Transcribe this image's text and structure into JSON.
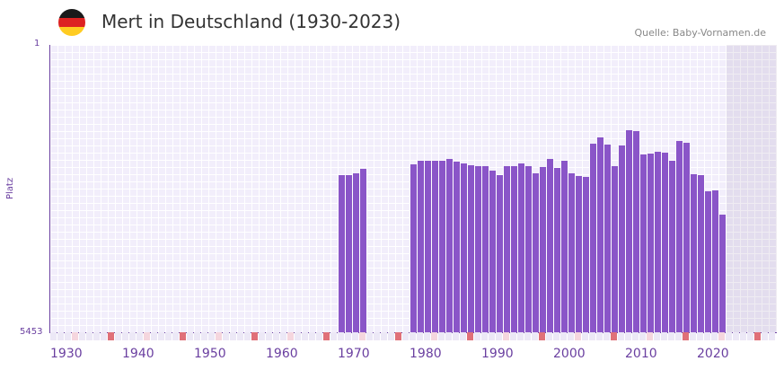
{
  "header": {
    "title": "Mert in Deutschland (1930-2023)",
    "source": "Quelle: Baby-Vornamen.de",
    "flag_colors": [
      "#1a1a1a",
      "#dd2222",
      "#ffcc22"
    ]
  },
  "colors": {
    "bar": "#8a55c8",
    "axis": "#6a3fa0",
    "major_tick": "#e07078"
  },
  "chart_data": {
    "type": "bar",
    "title": "Mert in Deutschland (1930-2023)",
    "xlabel": "",
    "ylabel": "Platz",
    "y_axis_inverted": true,
    "ylim": [
      1,
      5453
    ],
    "ytick_labels": [
      "1",
      "5453"
    ],
    "xtick_labels": [
      "1930",
      "1940",
      "1950",
      "1960",
      "1970",
      "1980",
      "1990",
      "2000",
      "2010",
      "2020"
    ],
    "x": [
      1970,
      1971,
      1972,
      1973,
      1980,
      1981,
      1982,
      1983,
      1984,
      1985,
      1986,
      1987,
      1988,
      1989,
      1990,
      1991,
      1992,
      1993,
      1994,
      1995,
      1996,
      1997,
      1998,
      1999,
      2000,
      2001,
      2002,
      2003,
      2004,
      2005,
      2006,
      2007,
      2008,
      2009,
      2010,
      2011,
      2012,
      2013,
      2014,
      2015,
      2016,
      2017,
      2018,
      2019,
      2020,
      2021,
      2022,
      2023
    ],
    "values": [
      2472,
      2472,
      2438,
      2353,
      2268,
      2200,
      2200,
      2200,
      2200,
      2166,
      2217,
      2251,
      2285,
      2302,
      2302,
      2387,
      2472,
      2302,
      2302,
      2251,
      2302,
      2438,
      2319,
      2166,
      2336,
      2200,
      2438,
      2489,
      2506,
      1876,
      1757,
      1893,
      2302,
      1910,
      1621,
      1638,
      2081,
      2064,
      2030,
      2047,
      2200,
      1825,
      1859,
      2455,
      2472,
      2778,
      2761,
      3221
    ],
    "grid": true
  },
  "labels": {
    "y_top": "1",
    "y_bottom": "5453",
    "y_title": "Platz"
  }
}
